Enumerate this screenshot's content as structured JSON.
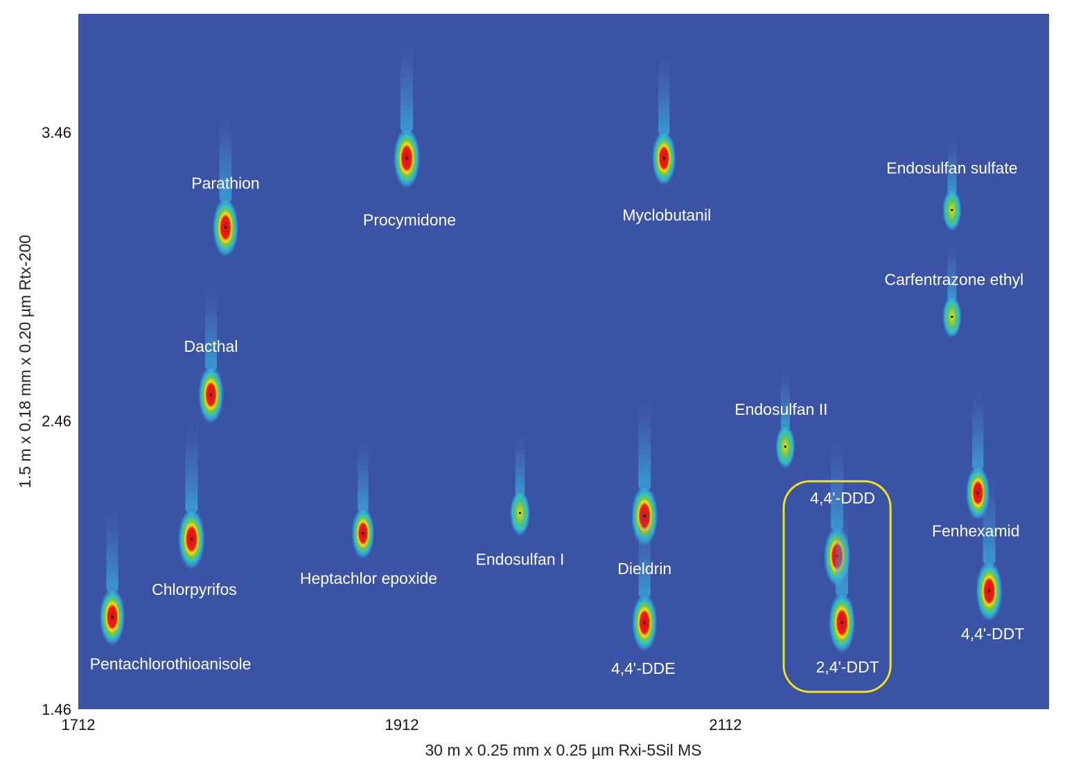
{
  "chart_data": {
    "type": "heatmap",
    "title": "",
    "xlabel": "30 m x 0.25 mm x 0.25 µm Rxi-5Sil MS",
    "ylabel": "1.5 m x 0.18 mm x 0.20 µm Rtx-200",
    "x_ticks": [
      "1712",
      "1912",
      "2112"
    ],
    "y_ticks": [
      "3.46",
      "2.46",
      "1.46"
    ],
    "xlim": [
      1712,
      2312
    ],
    "ylim": [
      1.46,
      3.87
    ],
    "grid": false,
    "background_color": "#3a53a4",
    "highlight_color": "#f5e512",
    "peaks": [
      {
        "name": "Pentachlorothioanisole",
        "x": 1733,
        "y": 1.78,
        "intensity": 0.9
      },
      {
        "name": "Chlorpyrifos",
        "x": 1782,
        "y": 2.05,
        "intensity": 1.0
      },
      {
        "name": "Dacthal",
        "x": 1794,
        "y": 2.55,
        "intensity": 0.9
      },
      {
        "name": "Parathion",
        "x": 1803,
        "y": 3.13,
        "intensity": 0.95
      },
      {
        "name": "Heptachlor epoxide",
        "x": 1888,
        "y": 2.07,
        "intensity": 0.7
      },
      {
        "name": "Procymidone",
        "x": 1915,
        "y": 3.37,
        "intensity": 1.0
      },
      {
        "name": "Endosulfan I",
        "x": 1985,
        "y": 2.14,
        "intensity": 0.5
      },
      {
        "name": "Dieldrin",
        "x": 2062,
        "y": 2.13,
        "intensity": 1.0
      },
      {
        "name": "4,4'-DDE",
        "x": 2062,
        "y": 1.76,
        "intensity": 0.9
      },
      {
        "name": "Myclobutanil",
        "x": 2074,
        "y": 3.37,
        "intensity": 0.8
      },
      {
        "name": "Endosulfan II",
        "x": 2149,
        "y": 2.37,
        "intensity": 0.45
      },
      {
        "name": "4,4'-DDD",
        "x": 2181,
        "y": 1.99,
        "intensity": 1.0
      },
      {
        "name": "2,4'-DDT",
        "x": 2184,
        "y": 1.76,
        "intensity": 1.0
      },
      {
        "name": "Endosulfan sulfate",
        "x": 2252,
        "y": 3.19,
        "intensity": 0.4
      },
      {
        "name": "Carfentrazone ethyl",
        "x": 2252,
        "y": 2.82,
        "intensity": 0.4
      },
      {
        "name": "Fenhexamid",
        "x": 2268,
        "y": 2.21,
        "intensity": 0.8
      },
      {
        "name": "4,4'-DDT",
        "x": 2275,
        "y": 1.87,
        "intensity": 1.0
      }
    ],
    "highlight_box": {
      "x_from": 2148,
      "x_to": 2214,
      "y_from": 1.52,
      "y_to": 2.25,
      "label": ""
    }
  }
}
